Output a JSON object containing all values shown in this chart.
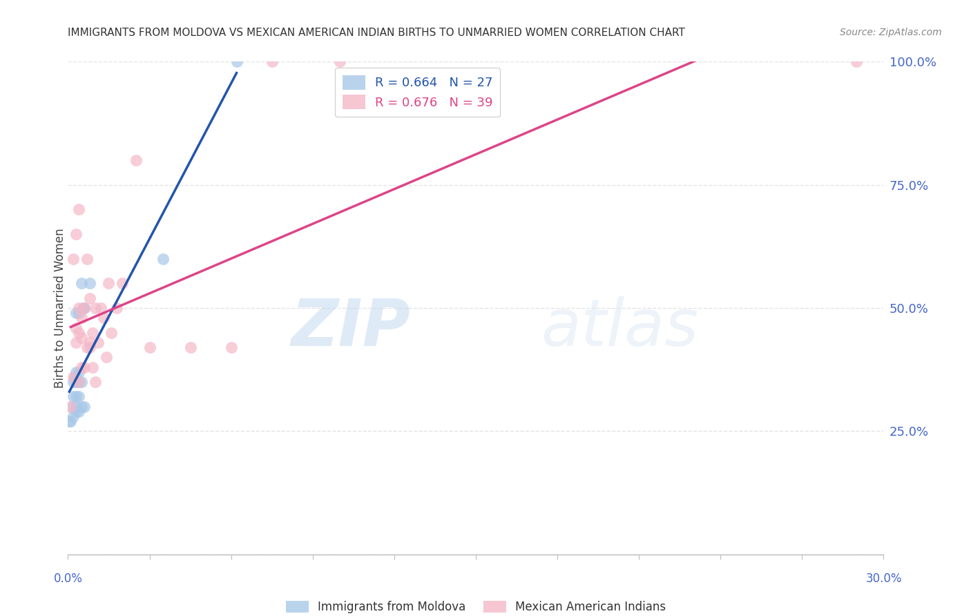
{
  "title": "IMMIGRANTS FROM MOLDOVA VS MEXICAN AMERICAN INDIAN BIRTHS TO UNMARRIED WOMEN CORRELATION CHART",
  "source": "Source: ZipAtlas.com",
  "ylabel": "Births to Unmarried Women",
  "legend1_R": "0.664",
  "legend1_N": "27",
  "legend2_R": "0.676",
  "legend2_N": "39",
  "legend1_label": "Immigrants from Moldova",
  "legend2_label": "Mexican American Indians",
  "blue_color": "#a8c8e8",
  "pink_color": "#f4b8c8",
  "blue_line_color": "#2255aa",
  "pink_line_color": "#dd4488",
  "watermark_zip": "ZIP",
  "watermark_atlas": "atlas",
  "blue_x": [
    0.0005,
    0.001,
    0.0015,
    0.002,
    0.002,
    0.002,
    0.0025,
    0.003,
    0.003,
    0.003,
    0.003,
    0.003,
    0.003,
    0.004,
    0.004,
    0.004,
    0.004,
    0.004,
    0.005,
    0.005,
    0.005,
    0.0055,
    0.006,
    0.006,
    0.008,
    0.035,
    0.062
  ],
  "blue_y": [
    0.27,
    0.27,
    0.3,
    0.28,
    0.32,
    0.35,
    0.36,
    0.29,
    0.3,
    0.32,
    0.35,
    0.37,
    0.49,
    0.29,
    0.32,
    0.35,
    0.37,
    0.49,
    0.3,
    0.35,
    0.55,
    0.5,
    0.3,
    0.5,
    0.55,
    0.6,
    1.0
  ],
  "pink_x": [
    0.001,
    0.002,
    0.002,
    0.003,
    0.003,
    0.003,
    0.004,
    0.004,
    0.004,
    0.004,
    0.005,
    0.005,
    0.005,
    0.006,
    0.006,
    0.007,
    0.007,
    0.008,
    0.008,
    0.008,
    0.009,
    0.009,
    0.01,
    0.01,
    0.011,
    0.012,
    0.013,
    0.014,
    0.015,
    0.016,
    0.018,
    0.02,
    0.025,
    0.03,
    0.045,
    0.06,
    0.075,
    0.1,
    0.29
  ],
  "pink_y": [
    0.3,
    0.36,
    0.6,
    0.43,
    0.46,
    0.65,
    0.35,
    0.45,
    0.5,
    0.7,
    0.38,
    0.44,
    0.48,
    0.38,
    0.5,
    0.42,
    0.6,
    0.42,
    0.43,
    0.52,
    0.38,
    0.45,
    0.35,
    0.5,
    0.43,
    0.5,
    0.48,
    0.4,
    0.55,
    0.45,
    0.5,
    0.55,
    0.8,
    0.42,
    0.42,
    0.42,
    1.0,
    1.0,
    1.0
  ],
  "background_color": "#ffffff",
  "grid_color": "#dddddd",
  "label_color": "#4466cc",
  "xlim": [
    0.0,
    0.3
  ],
  "ylim": [
    0.0,
    1.0
  ],
  "yticks": [
    0.0,
    0.25,
    0.5,
    0.75,
    1.0
  ],
  "ytick_labels": [
    "",
    "25.0%",
    "50.0%",
    "75.0%",
    "100.0%"
  ],
  "xtick_left_label": "0.0%",
  "xtick_right_label": "30.0%"
}
